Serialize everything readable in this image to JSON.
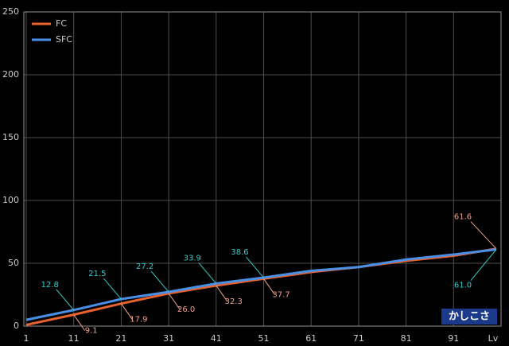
{
  "chart_data": {
    "type": "line",
    "x": [
      1,
      11,
      21,
      31,
      41,
      51,
      61,
      71,
      81,
      91,
      100
    ],
    "series": [
      {
        "name": "FC",
        "color": "#e8622c",
        "label_color": "#f2a08a",
        "values": [
          1,
          9.1,
          17.9,
          26.0,
          32.3,
          37.7,
          43,
          47,
          52,
          56,
          61.6
        ],
        "value_labels": [
          null,
          "9.1",
          "17.9",
          "26.0",
          "32.3",
          "37.7",
          null,
          null,
          null,
          null,
          "61.6"
        ]
      },
      {
        "name": "SFC",
        "color": "#4a8fe6",
        "label_color": "#33cccc",
        "values": [
          5,
          12.8,
          21.5,
          27.2,
          33.9,
          38.6,
          44,
          47,
          53,
          57,
          61.0
        ],
        "value_labels": [
          null,
          "12.8",
          "21.5",
          "27.2",
          "33.9",
          "38.6",
          null,
          null,
          null,
          null,
          "61.0"
        ]
      }
    ],
    "xlim": [
      0.5,
      101
    ],
    "ylim": [
      0,
      250
    ],
    "xticks": [
      1,
      11,
      21,
      31,
      41,
      51,
      61,
      71,
      81,
      91
    ],
    "yticks": [
      0,
      50,
      100,
      150,
      200,
      250
    ],
    "xlabel": "Lv",
    "badge": "かしこさ",
    "grid": true,
    "legend": "top-left"
  }
}
